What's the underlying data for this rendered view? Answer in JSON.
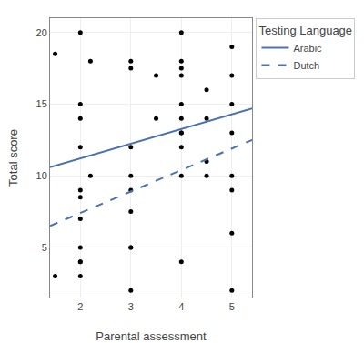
{
  "chart_data": {
    "type": "scatter",
    "xlabel": "Parental assessment",
    "ylabel": "Total score",
    "legend_title": "Testing Language",
    "legend": "right",
    "grid": true,
    "xlim": [
      1.4,
      5.4
    ],
    "ylim": [
      1.5,
      21.0
    ],
    "xticks": [
      2,
      3,
      4,
      5
    ],
    "yticks": [
      5,
      10,
      15,
      20
    ],
    "series": [
      {
        "type": "scatter",
        "color": "black",
        "marker": "circle",
        "x": [
          1.5,
          1.5,
          2.0,
          2.0,
          2.0,
          2.0,
          2.0,
          2.0,
          2.0,
          2.0,
          2.0,
          2.0,
          2.0,
          2.2,
          2.2,
          3.0,
          3.0,
          3.0,
          3.0,
          3.0,
          3.0,
          3.0,
          3.0,
          3.0,
          3.5,
          3.5,
          4.0,
          4.0,
          4.0,
          4.0,
          4.0,
          4.0,
          4.0,
          4.0,
          4.0,
          4.0,
          4.0,
          4.5,
          4.5,
          4.5,
          4.5,
          5.0,
          5.0,
          5.0,
          5.0,
          5.0,
          5.0,
          5.0,
          5.0
        ],
        "values": [
          18.5,
          3.0,
          20.0,
          15.0,
          14.0,
          12.0,
          9.0,
          8.5,
          7.0,
          5.0,
          4.0,
          4.0,
          3.0,
          18.0,
          10.0,
          18.0,
          17.5,
          12.0,
          10.0,
          9.0,
          7.5,
          5.0,
          5.0,
          2.0,
          17.0,
          14.0,
          20.0,
          18.0,
          17.5,
          17.0,
          15.0,
          14.0,
          13.0,
          13.0,
          12.0,
          10.0,
          4.0,
          16.0,
          14.0,
          11.0,
          10.0,
          19.0,
          17.0,
          15.0,
          13.0,
          10.0,
          9.0,
          6.0,
          2.0
        ]
      },
      {
        "type": "line",
        "name": "Arabic",
        "color": "#4C72B0",
        "line_style": "solid",
        "x": [
          1.4,
          5.4
        ],
        "values": [
          10.6,
          14.7
        ]
      },
      {
        "type": "line",
        "name": "Dutch",
        "color": "#4C72B0",
        "line_style": "dashed",
        "x": [
          1.4,
          5.4
        ],
        "values": [
          6.5,
          12.5
        ]
      }
    ]
  }
}
